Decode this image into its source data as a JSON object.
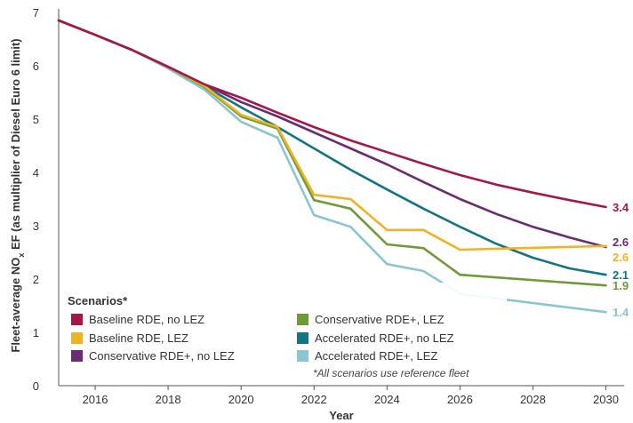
{
  "chart_data": {
    "type": "line",
    "xlabel": "Year",
    "ylabel_main": "Fleet-average NO",
    "ylabel_sub": "x",
    "ylabel_rest": " EF (as multiplier of Diesel Euro 6 limit)",
    "xlim": [
      2015,
      2030.5
    ],
    "ylim": [
      0,
      7
    ],
    "x_ticks": [
      2016,
      2018,
      2020,
      2022,
      2024,
      2026,
      2028,
      2030
    ],
    "y_ticks": [
      0,
      1,
      2,
      3,
      4,
      5,
      6,
      7
    ],
    "grid": false,
    "legend_placement": "bottom-left",
    "legend_title": "Scenarios*",
    "legend_note": "*All scenarios use reference fleet",
    "series": [
      {
        "name": "Baseline RDE, no LEZ",
        "color": "#a3174a",
        "end_label": "3.4",
        "x": [
          2015,
          2016,
          2017,
          2018,
          2019,
          2020,
          2021,
          2022,
          2023,
          2024,
          2025,
          2026,
          2027,
          2028,
          2029,
          2030
        ],
        "y": [
          6.85,
          6.58,
          6.3,
          5.98,
          5.65,
          5.4,
          5.12,
          4.85,
          4.6,
          4.38,
          4.16,
          3.95,
          3.77,
          3.62,
          3.48,
          3.35
        ]
      },
      {
        "name": "Baseline RDE, LEZ",
        "color": "#f0b323",
        "end_label": "2.6",
        "x": [
          2015,
          2016,
          2017,
          2018,
          2019,
          2020,
          2021,
          2022,
          2023,
          2024,
          2025,
          2026,
          2030
        ],
        "y": [
          6.85,
          6.58,
          6.3,
          5.98,
          5.62,
          5.08,
          4.85,
          3.58,
          3.5,
          2.92,
          2.92,
          2.55,
          2.62
        ]
      },
      {
        "name": "Conservative RDE+, no LEZ",
        "color": "#6a2c70",
        "end_label": "2.6",
        "x": [
          2015,
          2016,
          2017,
          2018,
          2019,
          2020,
          2021,
          2022,
          2023,
          2024,
          2025,
          2026,
          2027,
          2028,
          2029,
          2030
        ],
        "y": [
          6.85,
          6.58,
          6.3,
          5.98,
          5.65,
          5.32,
          5.05,
          4.75,
          4.45,
          4.15,
          3.82,
          3.5,
          3.22,
          2.98,
          2.78,
          2.6
        ]
      },
      {
        "name": "Conservative RDE+, LEZ",
        "color": "#6f9a38",
        "end_label": "1.9",
        "x": [
          2015,
          2016,
          2017,
          2018,
          2019,
          2020,
          2021,
          2022,
          2023,
          2024,
          2025,
          2026,
          2030
        ],
        "y": [
          6.85,
          6.58,
          6.3,
          5.98,
          5.6,
          5.05,
          4.82,
          3.48,
          3.32,
          2.65,
          2.58,
          2.08,
          1.88
        ]
      },
      {
        "name": "Accelerated RDE+, no LEZ",
        "color": "#137584",
        "end_label": "2.1",
        "x": [
          2015,
          2016,
          2017,
          2018,
          2019,
          2020,
          2021,
          2022,
          2023,
          2024,
          2025,
          2026,
          2027,
          2028,
          2029,
          2030
        ],
        "y": [
          6.85,
          6.58,
          6.3,
          5.98,
          5.62,
          5.22,
          4.85,
          4.45,
          4.05,
          3.68,
          3.32,
          2.98,
          2.66,
          2.4,
          2.2,
          2.08
        ]
      },
      {
        "name": "Accelerated RDE+, LEZ",
        "color": "#8ac6d2",
        "end_label": "1.4",
        "x": [
          2015,
          2016,
          2017,
          2018,
          2019,
          2020,
          2021,
          2022,
          2023,
          2024,
          2025,
          2026,
          2030
        ],
        "y": [
          6.85,
          6.58,
          6.3,
          5.95,
          5.55,
          4.95,
          4.65,
          3.2,
          2.98,
          2.28,
          2.15,
          1.72,
          1.38
        ]
      }
    ],
    "legend_rows": [
      [
        0,
        3
      ],
      [
        1,
        4
      ],
      [
        2,
        5
      ]
    ]
  }
}
